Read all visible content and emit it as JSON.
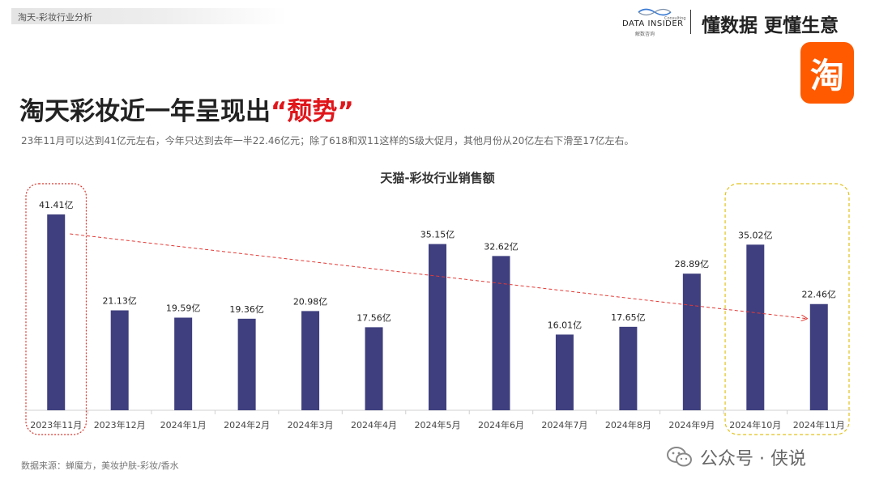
{
  "header": {
    "section_label": "淘天-彩妆行业分析",
    "brand_name": "DATA INSIDER",
    "brand_small": "Consulting",
    "brand_cn": "解数咨询",
    "slogan": "懂数据 更懂生意",
    "platform_icon_char": "淘",
    "platform_icon_color": "#ff5a00"
  },
  "title": {
    "main": "淘天彩妆近一年呈现出",
    "highlight": "“颓势”",
    "highlight_color": "#e0161b"
  },
  "subtitle": "23年11月可以达到41亿元左右，今年只达到去年一半22.46亿元；除了618和双11这样的S级大促月，其他月份从20亿左右下滑至17亿左右。",
  "chart_data": {
    "type": "bar",
    "title": "天猫-彩妆行业销售额",
    "categories": [
      "2023年11月",
      "2023年12月",
      "2024年1月",
      "2024年2月",
      "2024年3月",
      "2024年4月",
      "2024年5月",
      "2024年6月",
      "2024年7月",
      "2024年8月",
      "2024年9月",
      "2024年10月",
      "2024年11月"
    ],
    "values": [
      41.41,
      21.13,
      19.59,
      19.36,
      20.98,
      17.56,
      35.15,
      32.62,
      16.01,
      17.65,
      28.89,
      35.02,
      22.46
    ],
    "value_labels": [
      "41.41亿",
      "21.13亿",
      "19.59亿",
      "19.36亿",
      "20.98亿",
      "17.56亿",
      "35.15亿",
      "32.62亿",
      "16.01亿",
      "17.65亿",
      "28.89亿",
      "35.02亿",
      "22.46亿"
    ],
    "ylim": [
      0,
      41.41
    ],
    "grid": false,
    "bar_color": "#3f3f7f",
    "trend_line": {
      "from_index": 0,
      "to_index": 12,
      "color": "#e53935",
      "style": "dashed"
    },
    "highlight_boxes": [
      {
        "indices": [
          0
        ],
        "color": "#d9342b",
        "style": "dotted"
      },
      {
        "indices": [
          11,
          12
        ],
        "color": "#e2c21a",
        "style": "dashed"
      }
    ]
  },
  "footer": {
    "source": "数据来源：蝉魔方，美妆护肤-彩妆/香水",
    "watermark": "公众号 · 侠说"
  }
}
